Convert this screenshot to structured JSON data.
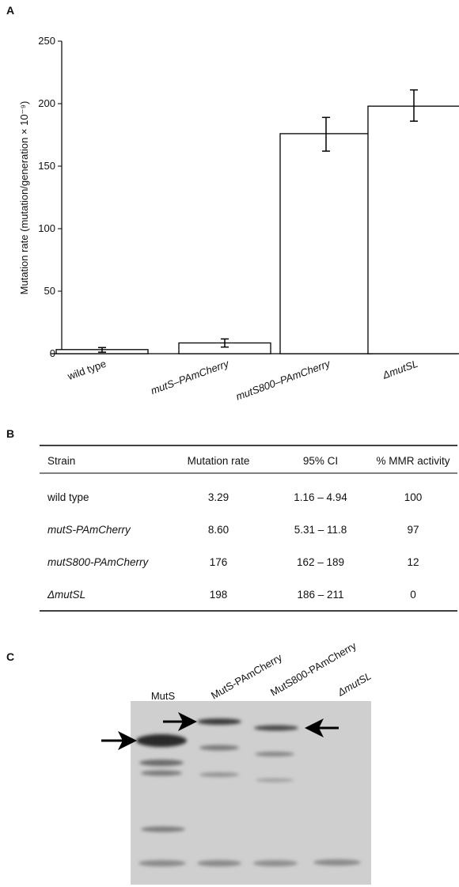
{
  "panel_labels": [
    "A",
    "B",
    "C"
  ],
  "chart_data": {
    "type": "bar",
    "y_label": "Mutation rate (mutation/generation × 10⁻⁹)",
    "categories": [
      "wild type",
      "mutS–PAmCherry",
      "mutS800–PAmCherry",
      "ΔmutSL"
    ],
    "values": [
      3.29,
      8.6,
      176,
      198
    ],
    "ci_low": [
      1.16,
      5.31,
      162,
      186
    ],
    "ci_high": [
      4.94,
      11.8,
      189,
      211
    ],
    "color": "#ffffff",
    "ylim": [
      0,
      250
    ],
    "yticks": [
      0,
      50,
      100,
      150,
      200,
      250
    ],
    "grid": false
  },
  "table": {
    "header": [
      "Strain",
      "Mutation rate",
      "95% CI",
      "% MMR activity"
    ],
    "rows": [
      [
        "wild type",
        "3.29",
        "1.16 – 4.94",
        "100"
      ],
      [
        "mutS-PAmCherry",
        "8.60",
        "5.31 – 11.8",
        "97"
      ],
      [
        "mutS800-PAmCherry",
        "176",
        "162 – 189",
        "12"
      ],
      [
        "ΔmutSL",
        "198",
        "186 – 211",
        "0"
      ]
    ]
  },
  "blot": {
    "lanes": [
      "MutS",
      "MutS-PAmCherry",
      "MutS800-PAmCherry",
      "ΔmutSL"
    ]
  }
}
